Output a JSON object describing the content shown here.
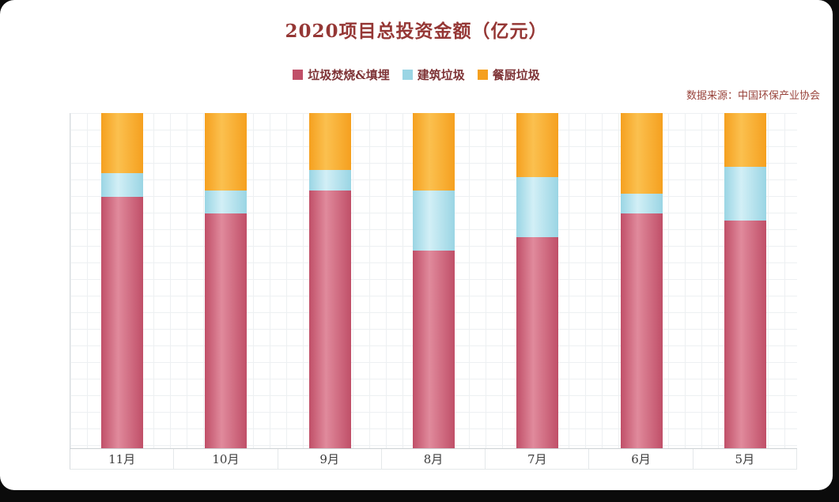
{
  "page": {
    "title": "2020项目总投资金额（亿元）",
    "source": "数据来源：中国环保产业协会"
  },
  "chart_data": {
    "type": "bar",
    "stacked": true,
    "percent_stacked": true,
    "title": "2020项目总投资金额（亿元）",
    "categories": [
      "11月",
      "10月",
      "9月",
      "8月",
      "7月",
      "6月",
      "5月"
    ],
    "series": [
      {
        "name": "垃圾焚烧&填埋",
        "color": "#c04f68",
        "light": "#e08a9c",
        "values": [
          75,
          70,
          77,
          59,
          63,
          70,
          68
        ]
      },
      {
        "name": "建筑垃圾",
        "color": "#9ad5e4",
        "light": "#d2eff6",
        "values": [
          7,
          7,
          6,
          18,
          18,
          6,
          16
        ]
      },
      {
        "name": "餐厨垃圾",
        "color": "#f5a01f",
        "light": "#fbc04f",
        "values": [
          18,
          23,
          17,
          23,
          19,
          24,
          16
        ]
      }
    ],
    "ylim": [
      0,
      100
    ],
    "legend_position": "top",
    "grid": true,
    "source": "数据来源：中国环保产业协会"
  }
}
